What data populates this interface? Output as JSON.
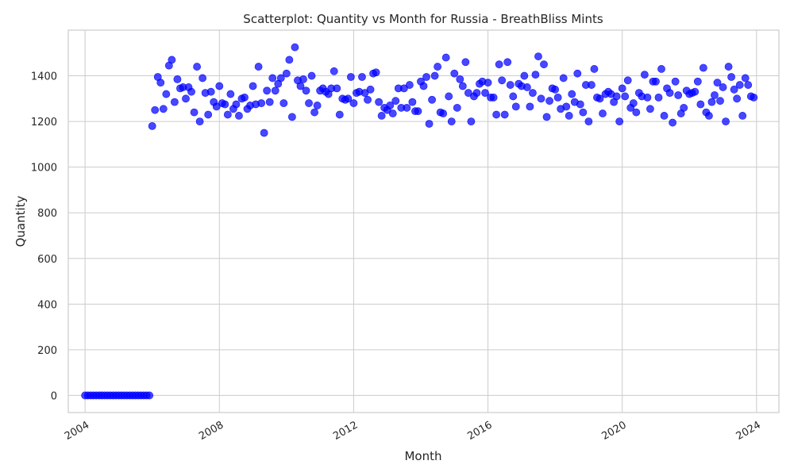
{
  "chart_data": {
    "type": "scatter",
    "title": "Scatterplot: Quantity vs Month for Russia - BreathBliss Mints",
    "xlabel": "Month",
    "ylabel": "Quantity",
    "xlim": [
      "2003-07-01",
      "2024-09-01"
    ],
    "ylim": [
      -75,
      1600
    ],
    "x_ticks": [
      "2004",
      "2008",
      "2012",
      "2016",
      "2020",
      "2024"
    ],
    "y_ticks": [
      0,
      200,
      400,
      600,
      800,
      1000,
      1200,
      1400
    ],
    "grid": true,
    "legend": "none",
    "color": "#0000ff",
    "x_start": "2004-01",
    "x_frequency": "monthly",
    "y": [
      0,
      0,
      0,
      0,
      0,
      0,
      0,
      0,
      0,
      0,
      0,
      0,
      0,
      0,
      0,
      0,
      0,
      0,
      0,
      0,
      0,
      0,
      0,
      0,
      1180,
      1250,
      1395,
      1370,
      1255,
      1320,
      1445,
      1470,
      1285,
      1385,
      1345,
      1350,
      1300,
      1350,
      1330,
      1240,
      1440,
      1200,
      1390,
      1325,
      1230,
      1330,
      1285,
      1265,
      1355,
      1280,
      1275,
      1230,
      1320,
      1255,
      1275,
      1225,
      1300,
      1305,
      1255,
      1270,
      1355,
      1275,
      1440,
      1280,
      1150,
      1335,
      1285,
      1390,
      1335,
      1365,
      1390,
      1280,
      1410,
      1470,
      1220,
      1525,
      1380,
      1355,
      1385,
      1335,
      1280,
      1400,
      1240,
      1270,
      1335,
      1345,
      1330,
      1320,
      1345,
      1420,
      1345,
      1230,
      1300,
      1295,
      1300,
      1395,
      1280,
      1325,
      1330,
      1395,
      1325,
      1295,
      1340,
      1410,
      1415,
      1285,
      1225,
      1260,
      1250,
      1270,
      1235,
      1290,
      1345,
      1260,
      1345,
      1260,
      1360,
      1285,
      1245,
      1245,
      1375,
      1355,
      1395,
      1190,
      1295,
      1400,
      1440,
      1240,
      1235,
      1480,
      1310,
      1200,
      1410,
      1260,
      1385,
      1355,
      1460,
      1325,
      1200,
      1310,
      1325,
      1365,
      1375,
      1325,
      1370,
      1305,
      1305,
      1230,
      1450,
      1380,
      1230,
      1460,
      1360,
      1310,
      1265,
      1365,
      1355,
      1400,
      1350,
      1265,
      1325,
      1405,
      1485,
      1300,
      1450,
      1220,
      1290,
      1345,
      1340,
      1305,
      1255,
      1390,
      1265,
      1225,
      1320,
      1285,
      1410,
      1275,
      1240,
      1360,
      1200,
      1360,
      1430,
      1305,
      1300,
      1235,
      1320,
      1330,
      1320,
      1285,
      1310,
      1200,
      1345,
      1310,
      1380,
      1260,
      1280,
      1240,
      1325,
      1310,
      1405,
      1305,
      1255,
      1375,
      1375,
      1305,
      1430,
      1225,
      1345,
      1325,
      1195,
      1375,
      1315,
      1235,
      1260,
      1335,
      1320,
      1325,
      1330,
      1375,
      1275,
      1435,
      1240,
      1225,
      1285,
      1315,
      1370,
      1290,
      1350,
      1200,
      1440,
      1395,
      1340,
      1300,
      1360,
      1225,
      1390,
      1360,
      1310,
      1305
    ]
  }
}
